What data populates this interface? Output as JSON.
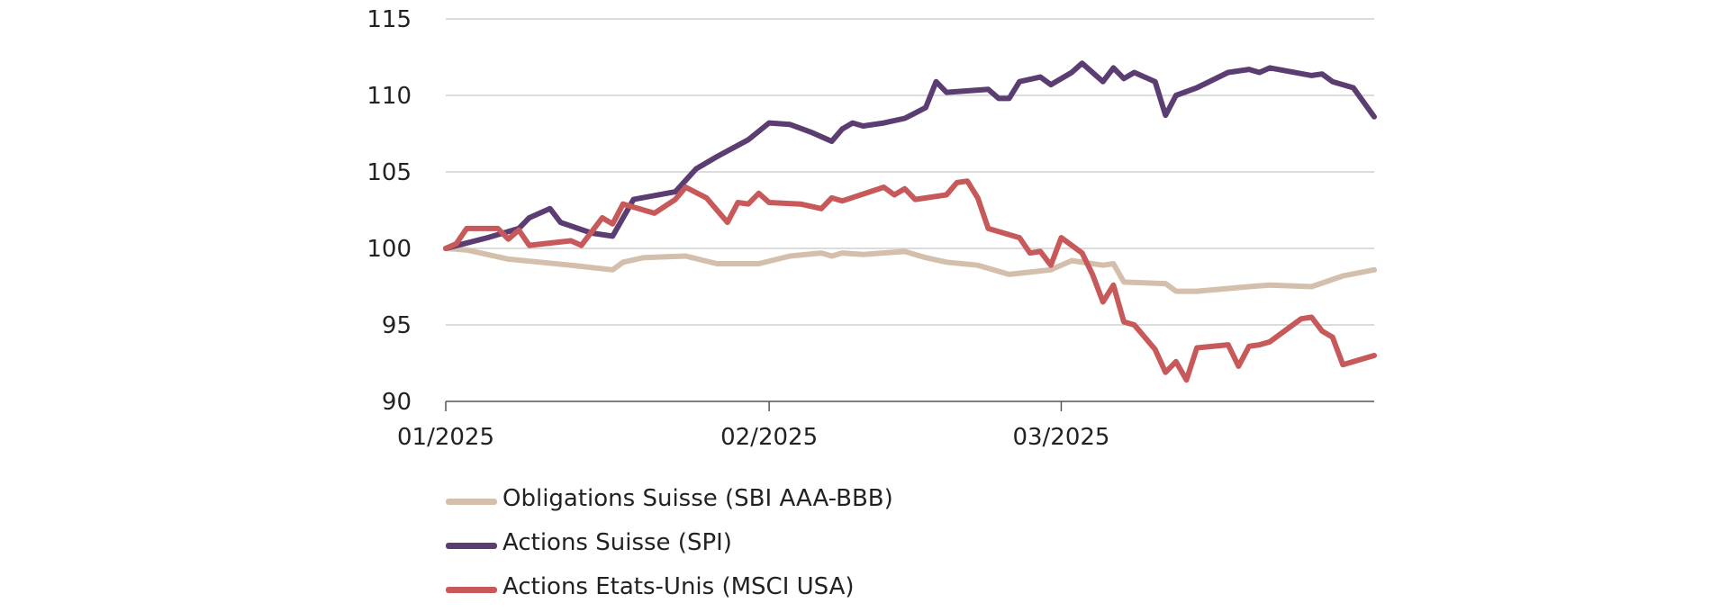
{
  "chart_data": {
    "type": "line",
    "x_ticks": [
      "01/2025",
      "02/2025",
      "03/2025"
    ],
    "ylim": [
      90,
      115
    ],
    "yticks": [
      90,
      95,
      100,
      105,
      110,
      115
    ],
    "grid": true,
    "legend_position": "bottom-left",
    "series": [
      {
        "name": "Obligations Suisse (SBI AAA-BBB)",
        "color": "#d3bfab",
        "points": [
          [
            "2025-01-01",
            100.0
          ],
          [
            "2025-01-03",
            99.9
          ],
          [
            "2025-01-07",
            99.3
          ],
          [
            "2025-01-10",
            99.1
          ],
          [
            "2025-01-13",
            98.9
          ],
          [
            "2025-01-17",
            98.6
          ],
          [
            "2025-01-18",
            99.1
          ],
          [
            "2025-01-20",
            99.4
          ],
          [
            "2025-01-24",
            99.5
          ],
          [
            "2025-01-27",
            99.0
          ],
          [
            "2025-01-31",
            99.0
          ],
          [
            "2025-02-03",
            99.5
          ],
          [
            "2025-02-06",
            99.7
          ],
          [
            "2025-02-07",
            99.5
          ],
          [
            "2025-02-08",
            99.7
          ],
          [
            "2025-02-10",
            99.6
          ],
          [
            "2025-02-14",
            99.8
          ],
          [
            "2025-02-16",
            99.4
          ],
          [
            "2025-02-18",
            99.1
          ],
          [
            "2025-02-21",
            98.9
          ],
          [
            "2025-02-24",
            98.3
          ],
          [
            "2025-02-28",
            98.6
          ],
          [
            "2025-03-02",
            99.2
          ],
          [
            "2025-03-05",
            98.9
          ],
          [
            "2025-03-06",
            99.0
          ],
          [
            "2025-03-07",
            97.8
          ],
          [
            "2025-03-11",
            97.7
          ],
          [
            "2025-03-12",
            97.2
          ],
          [
            "2025-03-14",
            97.2
          ],
          [
            "2025-03-19",
            97.5
          ],
          [
            "2025-03-21",
            97.6
          ],
          [
            "2025-03-25",
            97.5
          ],
          [
            "2025-03-28",
            98.2
          ],
          [
            "2025-03-31",
            98.6
          ]
        ]
      },
      {
        "name": "Actions Suisse (SPI)",
        "color": "#5b3d72",
        "points": [
          [
            "2025-01-01",
            100.0
          ],
          [
            "2025-01-05",
            100.7
          ],
          [
            "2025-01-08",
            101.3
          ],
          [
            "2025-01-09",
            102.0
          ],
          [
            "2025-01-11",
            102.6
          ],
          [
            "2025-01-12",
            101.7
          ],
          [
            "2025-01-15",
            101.0
          ],
          [
            "2025-01-17",
            100.8
          ],
          [
            "2025-01-19",
            103.2
          ],
          [
            "2025-01-23",
            103.7
          ],
          [
            "2025-01-25",
            105.2
          ],
          [
            "2025-01-27",
            106.0
          ],
          [
            "2025-01-30",
            107.1
          ],
          [
            "2025-02-01",
            108.2
          ],
          [
            "2025-02-03",
            108.1
          ],
          [
            "2025-02-05",
            107.6
          ],
          [
            "2025-02-07",
            107.0
          ],
          [
            "2025-02-08",
            107.8
          ],
          [
            "2025-02-09",
            108.2
          ],
          [
            "2025-02-10",
            108.0
          ],
          [
            "2025-02-12",
            108.2
          ],
          [
            "2025-02-14",
            108.5
          ],
          [
            "2025-02-16",
            109.2
          ],
          [
            "2025-02-17",
            110.9
          ],
          [
            "2025-02-18",
            110.2
          ],
          [
            "2025-02-22",
            110.4
          ],
          [
            "2025-02-23",
            109.8
          ],
          [
            "2025-02-24",
            109.8
          ],
          [
            "2025-02-25",
            110.9
          ],
          [
            "2025-02-27",
            111.2
          ],
          [
            "2025-02-28",
            110.7
          ],
          [
            "2025-03-02",
            111.5
          ],
          [
            "2025-03-03",
            112.1
          ],
          [
            "2025-03-05",
            110.9
          ],
          [
            "2025-03-06",
            111.8
          ],
          [
            "2025-03-07",
            111.1
          ],
          [
            "2025-03-08",
            111.5
          ],
          [
            "2025-03-10",
            110.9
          ],
          [
            "2025-03-11",
            108.7
          ],
          [
            "2025-03-12",
            110.0
          ],
          [
            "2025-03-14",
            110.5
          ],
          [
            "2025-03-17",
            111.5
          ],
          [
            "2025-03-19",
            111.7
          ],
          [
            "2025-03-20",
            111.5
          ],
          [
            "2025-03-21",
            111.8
          ],
          [
            "2025-03-25",
            111.3
          ],
          [
            "2025-03-26",
            111.4
          ],
          [
            "2025-03-27",
            110.9
          ],
          [
            "2025-03-29",
            110.5
          ],
          [
            "2025-03-31",
            108.6
          ]
        ]
      },
      {
        "name": "Actions Etats-Unis (MSCI USA)",
        "color": "#c8595a",
        "points": [
          [
            "2025-01-01",
            100.0
          ],
          [
            "2025-01-02",
            100.3
          ],
          [
            "2025-01-03",
            101.3
          ],
          [
            "2025-01-06",
            101.3
          ],
          [
            "2025-01-07",
            100.6
          ],
          [
            "2025-01-08",
            101.2
          ],
          [
            "2025-01-09",
            100.2
          ],
          [
            "2025-01-13",
            100.5
          ],
          [
            "2025-01-14",
            100.2
          ],
          [
            "2025-01-16",
            102.0
          ],
          [
            "2025-01-17",
            101.6
          ],
          [
            "2025-01-18",
            102.9
          ],
          [
            "2025-01-21",
            102.3
          ],
          [
            "2025-01-23",
            103.2
          ],
          [
            "2025-01-24",
            104.0
          ],
          [
            "2025-01-26",
            103.3
          ],
          [
            "2025-01-28",
            101.7
          ],
          [
            "2025-01-29",
            103.0
          ],
          [
            "2025-01-30",
            102.9
          ],
          [
            "2025-01-31",
            103.6
          ],
          [
            "2025-02-01",
            103.0
          ],
          [
            "2025-02-04",
            102.9
          ],
          [
            "2025-02-06",
            102.6
          ],
          [
            "2025-02-07",
            103.3
          ],
          [
            "2025-02-08",
            103.1
          ],
          [
            "2025-02-12",
            104.0
          ],
          [
            "2025-02-13",
            103.5
          ],
          [
            "2025-02-14",
            103.9
          ],
          [
            "2025-02-15",
            103.2
          ],
          [
            "2025-02-18",
            103.5
          ],
          [
            "2025-02-19",
            104.3
          ],
          [
            "2025-02-20",
            104.4
          ],
          [
            "2025-02-21",
            103.3
          ],
          [
            "2025-02-22",
            101.3
          ],
          [
            "2025-02-25",
            100.7
          ],
          [
            "2025-02-26",
            99.7
          ],
          [
            "2025-02-27",
            99.8
          ],
          [
            "2025-02-28",
            98.9
          ],
          [
            "2025-03-01",
            100.7
          ],
          [
            "2025-03-03",
            99.7
          ],
          [
            "2025-03-04",
            98.3
          ],
          [
            "2025-03-05",
            96.5
          ],
          [
            "2025-03-06",
            97.6
          ],
          [
            "2025-03-07",
            95.2
          ],
          [
            "2025-03-08",
            95.0
          ],
          [
            "2025-03-10",
            93.4
          ],
          [
            "2025-03-11",
            91.9
          ],
          [
            "2025-03-12",
            92.6
          ],
          [
            "2025-03-13",
            91.4
          ],
          [
            "2025-03-14",
            93.5
          ],
          [
            "2025-03-17",
            93.7
          ],
          [
            "2025-03-18",
            92.3
          ],
          [
            "2025-03-19",
            93.6
          ],
          [
            "2025-03-20",
            93.7
          ],
          [
            "2025-03-21",
            93.9
          ],
          [
            "2025-03-24",
            95.4
          ],
          [
            "2025-03-25",
            95.5
          ],
          [
            "2025-03-26",
            94.6
          ],
          [
            "2025-03-27",
            94.2
          ],
          [
            "2025-03-28",
            92.4
          ],
          [
            "2025-03-31",
            93.0
          ]
        ]
      }
    ]
  }
}
